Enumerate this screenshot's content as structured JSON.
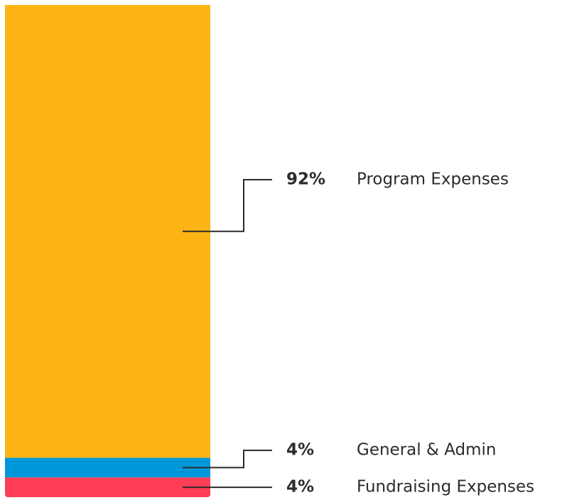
{
  "chart_data": {
    "type": "bar",
    "stacked": true,
    "categories": [
      "Program Expenses",
      "General & Admin",
      "Fundraising Expenses"
    ],
    "values": [
      92,
      4,
      4
    ],
    "labels": [
      "92%",
      "4%",
      "4%"
    ],
    "colors": [
      "#FDB515",
      "#0098DB",
      "#FF3D55"
    ],
    "ylim": [
      0,
      100
    ],
    "grid": false,
    "legend": "none"
  }
}
